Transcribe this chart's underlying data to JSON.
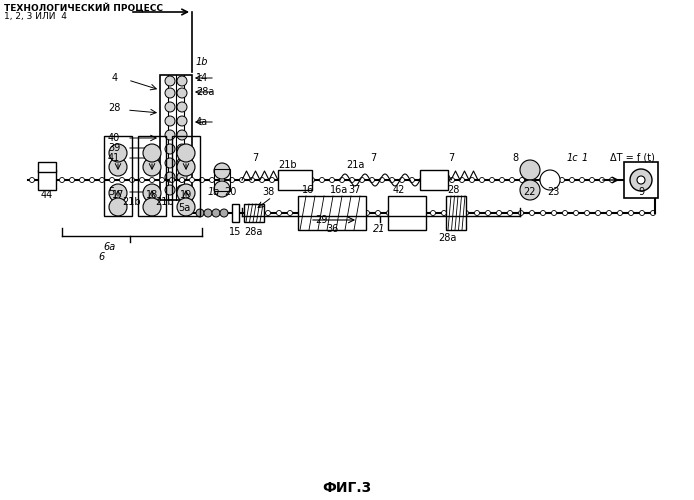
{
  "title": "ФИГ.3",
  "header_text1": "ТЕХНОЛОГИЧЕСКИЙ ПРОЦЕСС",
  "header_text2": "1, 2, 3 ИЛИ  4",
  "delta_t_text": "ΔT = f (t)",
  "bg_color": "#ffffff",
  "line_color": "#000000",
  "fig_width": 6.94,
  "fig_height": 5.0,
  "dpi": 100
}
